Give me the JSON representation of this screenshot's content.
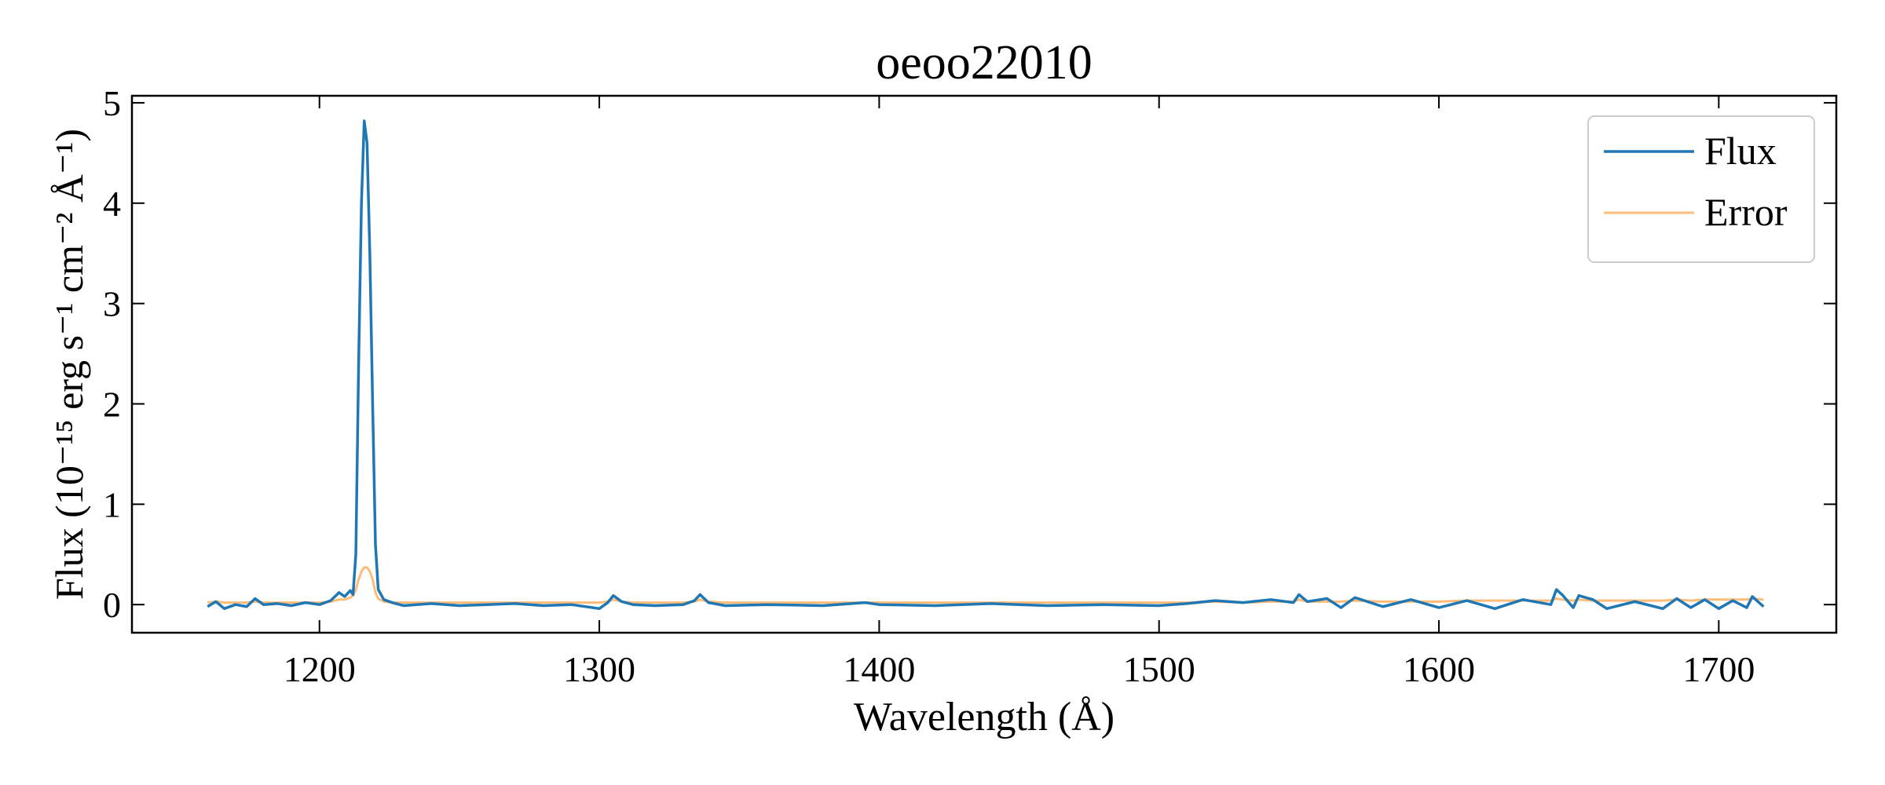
{
  "chart_data": {
    "type": "line",
    "title": "oeoo22010",
    "x_label": "Wavelength (Å)",
    "y_label": "Flux (10⁻¹⁵ erg s⁻¹ cm⁻² Å⁻¹)",
    "x": [
      1160,
      1163,
      1166,
      1170,
      1174,
      1177,
      1180,
      1185,
      1190,
      1195,
      1200,
      1204,
      1207,
      1209,
      1211,
      1212,
      1213,
      1214,
      1215,
      1216,
      1217,
      1218,
      1219,
      1220,
      1221,
      1223,
      1226,
      1230,
      1240,
      1250,
      1260,
      1270,
      1280,
      1290,
      1300,
      1303,
      1305,
      1308,
      1312,
      1320,
      1330,
      1334,
      1336,
      1339,
      1345,
      1360,
      1380,
      1395,
      1400,
      1420,
      1440,
      1460,
      1480,
      1500,
      1510,
      1520,
      1530,
      1540,
      1548,
      1550,
      1553,
      1560,
      1565,
      1570,
      1580,
      1590,
      1600,
      1610,
      1620,
      1630,
      1640,
      1642,
      1644,
      1648,
      1650,
      1655,
      1660,
      1670,
      1680,
      1685,
      1690,
      1695,
      1700,
      1705,
      1710,
      1712,
      1716
    ],
    "series": [
      {
        "name": "Flux",
        "color": "#1f77b4",
        "width": 3.5,
        "values": [
          -0.02,
          0.03,
          -0.04,
          0.0,
          -0.02,
          0.06,
          0.0,
          0.01,
          -0.01,
          0.02,
          0.0,
          0.04,
          0.12,
          0.08,
          0.14,
          0.1,
          0.5,
          2.4,
          4.0,
          4.82,
          4.6,
          3.5,
          2.0,
          0.6,
          0.15,
          0.05,
          0.02,
          -0.01,
          0.01,
          -0.01,
          0.0,
          0.01,
          -0.01,
          0.0,
          -0.04,
          0.02,
          0.09,
          0.03,
          0.0,
          -0.01,
          0.0,
          0.04,
          0.1,
          0.02,
          -0.01,
          0.0,
          -0.01,
          0.02,
          0.0,
          -0.01,
          0.01,
          -0.01,
          0.0,
          -0.01,
          0.01,
          0.04,
          0.02,
          0.05,
          0.02,
          0.1,
          0.03,
          0.06,
          -0.03,
          0.07,
          -0.02,
          0.05,
          -0.03,
          0.04,
          -0.04,
          0.05,
          0.0,
          0.15,
          0.1,
          -0.03,
          0.09,
          0.05,
          -0.04,
          0.03,
          -0.04,
          0.06,
          -0.03,
          0.05,
          -0.04,
          0.04,
          -0.03,
          0.08,
          -0.02
        ]
      },
      {
        "name": "Error",
        "color": "#ffbb78",
        "width": 3,
        "values": [
          0.02,
          0.03,
          0.02,
          0.02,
          0.02,
          0.03,
          0.02,
          0.02,
          0.02,
          0.02,
          0.02,
          0.03,
          0.05,
          0.05,
          0.07,
          0.09,
          0.15,
          0.25,
          0.33,
          0.37,
          0.37,
          0.33,
          0.25,
          0.12,
          0.06,
          0.03,
          0.02,
          0.02,
          0.02,
          0.02,
          0.02,
          0.02,
          0.02,
          0.02,
          0.02,
          0.03,
          0.05,
          0.03,
          0.02,
          0.02,
          0.02,
          0.03,
          0.05,
          0.03,
          0.02,
          0.02,
          0.02,
          0.02,
          0.02,
          0.02,
          0.02,
          0.02,
          0.02,
          0.02,
          0.02,
          0.03,
          0.02,
          0.03,
          0.03,
          0.05,
          0.03,
          0.03,
          0.03,
          0.04,
          0.03,
          0.03,
          0.03,
          0.04,
          0.04,
          0.04,
          0.04,
          0.06,
          0.05,
          0.04,
          0.05,
          0.04,
          0.04,
          0.04,
          0.04,
          0.05,
          0.04,
          0.05,
          0.05,
          0.05,
          0.05,
          0.06,
          0.05
        ]
      }
    ],
    "xlim": [
      1133,
      1742
    ],
    "xticks": [
      1200,
      1300,
      1400,
      1500,
      1600,
      1700
    ],
    "ylim": [
      -0.28,
      5.07
    ],
    "yticks": [
      0,
      1,
      2,
      3,
      4,
      5
    ],
    "grid": false,
    "legend": "upper right"
  }
}
